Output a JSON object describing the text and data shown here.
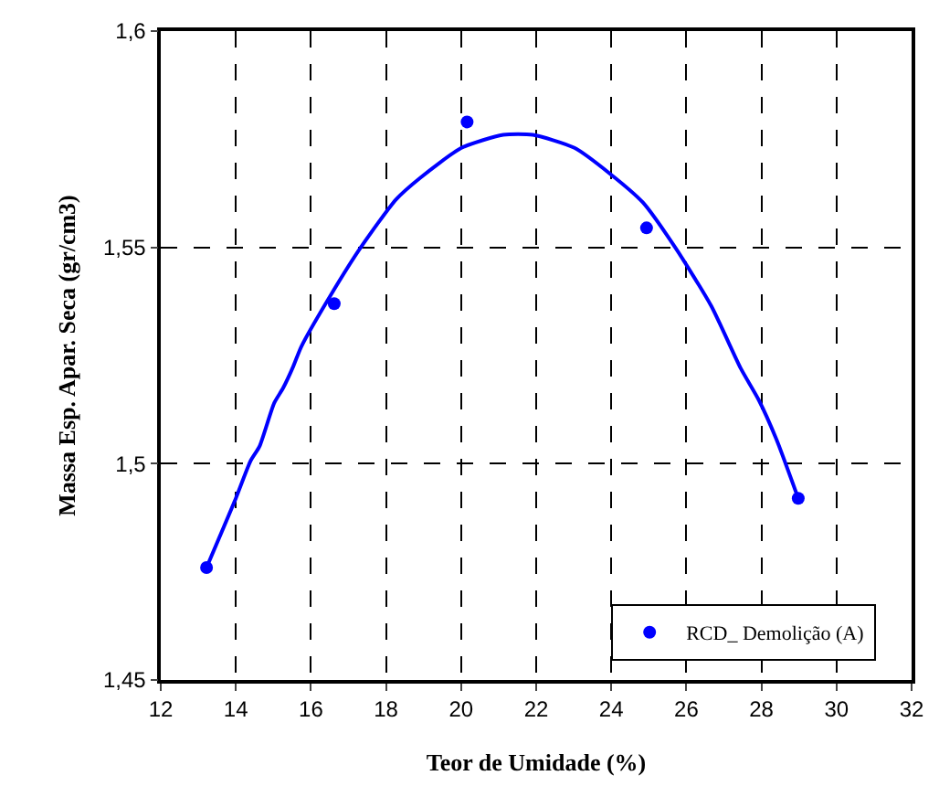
{
  "chart_data": {
    "type": "scatter",
    "xlabel": "Teor de Umidade (%)",
    "ylabel": "Massa Esp. Apar. Seca (gr/cm3)",
    "series": [
      {
        "name": "RCD_ Demolição (A)",
        "color": "#0000ff",
        "marker": "circle",
        "x": [
          13.22,
          16.62,
          20.16,
          24.94,
          28.98
        ],
        "values": [
          1.476,
          1.537,
          1.579,
          1.5545,
          1.492
        ]
      },
      {
        "type": "line",
        "color": "#0000ff",
        "marker": "none",
        "line_style": "solid",
        "x": [
          13.22,
          14.0,
          14.39,
          14.63,
          15.02,
          15.26,
          15.53,
          15.74,
          16.53,
          17.32,
          18.27,
          18.9,
          20.01,
          21.12,
          21.91,
          23.02,
          23.97,
          24.84,
          25.71,
          26.66,
          27.45,
          27.93,
          28.4,
          28.98
        ],
        "values": [
          1.476,
          1.492,
          1.5006,
          1.504,
          1.514,
          1.5175,
          1.5225,
          1.527,
          1.539,
          1.5499,
          1.5611,
          1.566,
          1.573,
          1.576,
          1.576,
          1.573,
          1.567,
          1.5604,
          1.5499,
          1.5365,
          1.522,
          1.5147,
          1.5056,
          1.492
        ]
      }
    ],
    "xlim": [
      12,
      32
    ],
    "xticks": [
      12,
      14,
      16,
      18,
      20,
      22,
      24,
      26,
      28,
      30,
      32
    ],
    "ylim": [
      1.45,
      1.6
    ],
    "yticks": [
      {
        "value": 1.45,
        "label": "1,45"
      },
      {
        "value": 1.5,
        "label": "1,5"
      },
      {
        "value": 1.55,
        "label": "1,55"
      },
      {
        "value": 1.6,
        "label": "1,6"
      }
    ],
    "grid": true,
    "legend": "bottom right"
  }
}
